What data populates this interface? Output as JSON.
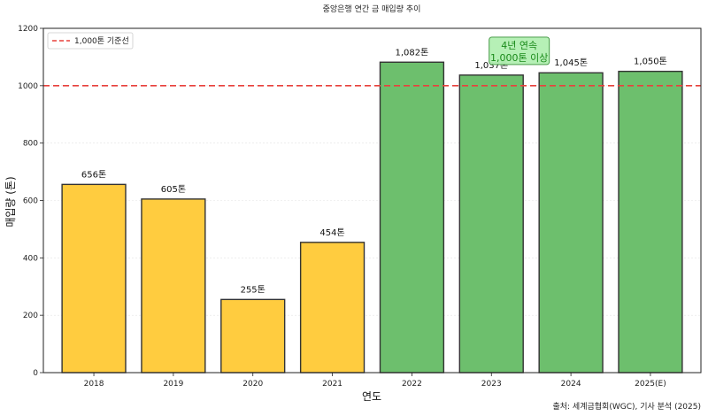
{
  "chart_data": {
    "type": "bar",
    "title": "중앙은행 연간 금 매입량 추이",
    "xlabel": "연도",
    "ylabel": "매입량 (톤)",
    "categories": [
      "2018",
      "2019",
      "2020",
      "2021",
      "2022",
      "2023",
      "2024",
      "2025(E)"
    ],
    "values": [
      656,
      605,
      255,
      454,
      1082,
      1037,
      1045,
      1050
    ],
    "bar_labels": [
      "656톤",
      "605톤",
      "255톤",
      "454톤",
      "1,082톤",
      "1,037톤",
      "1,045톤",
      "1,050톤"
    ],
    "bar_colors": [
      "#ffcc3f",
      "#ffcc3f",
      "#ffcc3f",
      "#ffcc3f",
      "#6dbf6d",
      "#6dbf6d",
      "#6dbf6d",
      "#6dbf6d"
    ],
    "ylim": [
      0,
      1200
    ],
    "yticks": [
      0,
      200,
      400,
      600,
      800,
      1000,
      1200
    ],
    "ytick_labels": [
      "0",
      "200",
      "400",
      "600",
      "800",
      "1000",
      "1200"
    ],
    "grid": true,
    "reference_line": {
      "value": 1000,
      "label": "1,000톤 기준선",
      "color": "#e8413c",
      "style": "dashed"
    },
    "legend": {
      "placement": "top-left",
      "entries": [
        "1,000톤 기준선"
      ]
    },
    "annotation": {
      "lines": [
        "4년 연속",
        "1,000톤 이상"
      ],
      "anchor_category": "2023",
      "value": 1120,
      "box_color": "#b3f0b3",
      "text_color": "#1a8a1a"
    },
    "source": "출처: 세계금협회(WGC), 기사 분석 (2025)"
  }
}
